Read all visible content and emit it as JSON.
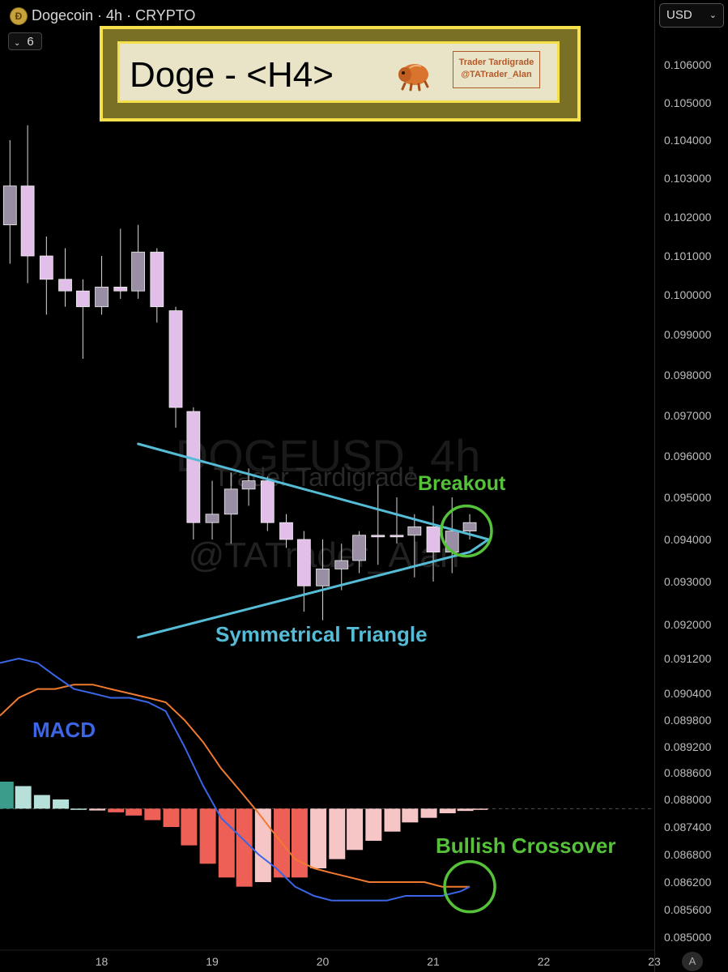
{
  "header": {
    "symbol_title": "Dogecoin · 4h · CRYPTO",
    "collapse_count": "6",
    "currency": "USD",
    "auto_scale": "A"
  },
  "banner": {
    "title": "Doge - <H4>",
    "brand_line1": "Trader Tardigrade",
    "brand_line2": "@TATrader_Alan"
  },
  "watermark": {
    "symbol": "DOGEUSD, 4h",
    "line1": "Trader Tardigrade",
    "line2": "@TATrader_Alan"
  },
  "annotations": {
    "breakout": "Breakout",
    "triangle": "Symmetrical Triangle",
    "macd": "MACD",
    "crossover": "Bullish Crossover"
  },
  "colors": {
    "candle_up": "#e2bfe8",
    "candle_down_gray": "#9a8ea5",
    "triangle_line": "#56bcd6",
    "annotation_green": "#55c23a",
    "macd_line": "#3a66e6",
    "signal_line": "#f07a30",
    "macd_label": "#3c66e6",
    "hist_pos_strong": "#3b9c8b",
    "hist_pos_weak": "#b8e0da",
    "hist_neg_strong": "#ee5f55",
    "hist_neg_weak": "#f6c6c6"
  },
  "chart_data": {
    "type": "candlestick",
    "title": "Doge - <H4>",
    "price_axis": {
      "ticks": [
        0.106,
        0.105,
        0.104,
        0.103,
        0.102,
        0.101,
        0.1,
        0.099,
        0.098,
        0.097,
        0.096,
        0.095,
        0.094,
        0.093,
        0.092,
        0.0912,
        0.0904,
        0.0898,
        0.0892,
        0.0886,
        0.088,
        0.0874,
        0.0868,
        0.0862,
        0.0856,
        0.085
      ],
      "tick_labels": [
        "0.106000",
        "0.105000",
        "0.104000",
        "0.103000",
        "0.102000",
        "0.101000",
        "0.100000",
        "0.099000",
        "0.098000",
        "0.097000",
        "0.096000",
        "0.095000",
        "0.094000",
        "0.093000",
        "0.092000",
        "0.091200",
        "0.090400",
        "0.089800",
        "0.089200",
        "0.088600",
        "0.088000",
        "0.087400",
        "0.086800",
        "0.086200",
        "0.085600",
        "0.085000"
      ]
    },
    "time_axis": {
      "ticks": [
        18,
        19,
        20,
        21,
        22,
        23
      ],
      "tick_labels": [
        "18",
        "19",
        "20",
        "21",
        "22",
        "23"
      ],
      "range": [
        17.08,
        23.0
      ]
    },
    "candles": [
      {
        "t": 17.17,
        "o": 0.1018,
        "h": 0.104,
        "l": 0.1008,
        "c": 0.1028,
        "style": "gray"
      },
      {
        "t": 17.33,
        "o": 0.1028,
        "h": 0.1044,
        "l": 0.1003,
        "c": 0.101,
        "style": "pink"
      },
      {
        "t": 17.5,
        "o": 0.101,
        "h": 0.1015,
        "l": 0.0995,
        "c": 0.1004,
        "style": "pink"
      },
      {
        "t": 17.67,
        "o": 0.1004,
        "h": 0.1012,
        "l": 0.0997,
        "c": 0.1001,
        "style": "pink"
      },
      {
        "t": 17.83,
        "o": 0.1001,
        "h": 0.1004,
        "l": 0.0984,
        "c": 0.0997,
        "style": "pink"
      },
      {
        "t": 18.0,
        "o": 0.0997,
        "h": 0.101,
        "l": 0.0995,
        "c": 0.1002,
        "style": "gray"
      },
      {
        "t": 18.17,
        "o": 0.1001,
        "h": 0.1017,
        "l": 0.0999,
        "c": 0.1002,
        "style": "pink"
      },
      {
        "t": 18.33,
        "o": 0.1001,
        "h": 0.1018,
        "l": 0.0999,
        "c": 0.1011,
        "style": "gray"
      },
      {
        "t": 18.5,
        "o": 0.1011,
        "h": 0.1012,
        "l": 0.0993,
        "c": 0.0997,
        "style": "pink"
      },
      {
        "t": 18.67,
        "o": 0.0996,
        "h": 0.0997,
        "l": 0.0967,
        "c": 0.0972,
        "style": "pink"
      },
      {
        "t": 18.83,
        "o": 0.0971,
        "h": 0.0972,
        "l": 0.094,
        "c": 0.0944,
        "style": "pink"
      },
      {
        "t": 19.0,
        "o": 0.0944,
        "h": 0.0954,
        "l": 0.094,
        "c": 0.0946,
        "style": "gray"
      },
      {
        "t": 19.17,
        "o": 0.0946,
        "h": 0.0956,
        "l": 0.0939,
        "c": 0.0952,
        "style": "gray"
      },
      {
        "t": 19.33,
        "o": 0.0952,
        "h": 0.0957,
        "l": 0.0948,
        "c": 0.0954,
        "style": "gray"
      },
      {
        "t": 19.5,
        "o": 0.0954,
        "h": 0.0955,
        "l": 0.0942,
        "c": 0.0944,
        "style": "pink"
      },
      {
        "t": 19.67,
        "o": 0.0944,
        "h": 0.0946,
        "l": 0.0938,
        "c": 0.094,
        "style": "pink"
      },
      {
        "t": 19.83,
        "o": 0.094,
        "h": 0.0942,
        "l": 0.0923,
        "c": 0.0929,
        "style": "pink"
      },
      {
        "t": 20.0,
        "o": 0.0929,
        "h": 0.094,
        "l": 0.0921,
        "c": 0.0933,
        "style": "gray"
      },
      {
        "t": 20.17,
        "o": 0.0933,
        "h": 0.0939,
        "l": 0.0928,
        "c": 0.0935,
        "style": "gray"
      },
      {
        "t": 20.33,
        "o": 0.0935,
        "h": 0.0942,
        "l": 0.0932,
        "c": 0.0941,
        "style": "gray"
      },
      {
        "t": 20.5,
        "o": 0.0941,
        "h": 0.0953,
        "l": 0.0934,
        "c": 0.0941,
        "style": "pink"
      },
      {
        "t": 20.67,
        "o": 0.0941,
        "h": 0.095,
        "l": 0.0939,
        "c": 0.0941,
        "style": "pink"
      },
      {
        "t": 20.83,
        "o": 0.0941,
        "h": 0.0946,
        "l": 0.0931,
        "c": 0.0943,
        "style": "gray"
      },
      {
        "t": 21.0,
        "o": 0.0943,
        "h": 0.0948,
        "l": 0.093,
        "c": 0.0937,
        "style": "pink"
      },
      {
        "t": 21.17,
        "o": 0.0937,
        "h": 0.095,
        "l": 0.0932,
        "c": 0.0942,
        "style": "gray"
      },
      {
        "t": 21.33,
        "o": 0.0942,
        "h": 0.0946,
        "l": 0.094,
        "c": 0.0944,
        "style": "gray"
      }
    ],
    "triangle": {
      "upper": [
        {
          "t": 18.33,
          "p": 0.0963
        },
        {
          "t": 21.5,
          "p": 0.094
        }
      ],
      "lower": [
        {
          "t": 18.33,
          "p": 0.0917
        },
        {
          "t": 21.33,
          "p": 0.0937
        }
      ]
    },
    "breakout_circle": {
      "t": 21.3,
      "p": 0.0942
    },
    "macd": {
      "zero_level": 0.0878,
      "t": [
        17.08,
        17.25,
        17.42,
        17.58,
        17.75,
        17.92,
        18.08,
        18.25,
        18.42,
        18.58,
        18.75,
        18.92,
        19.08,
        19.25,
        19.42,
        19.58,
        19.75,
        19.92,
        20.08,
        20.25,
        20.42,
        20.58,
        20.75,
        20.92,
        21.08,
        21.25,
        21.33
      ],
      "macd_line": [
        0.0911,
        0.0912,
        0.0911,
        0.0908,
        0.0905,
        0.0904,
        0.0903,
        0.0903,
        0.0902,
        0.09,
        0.0892,
        0.0883,
        0.0876,
        0.0872,
        0.0868,
        0.0865,
        0.0861,
        0.0859,
        0.0858,
        0.0858,
        0.0858,
        0.0858,
        0.0859,
        0.0859,
        0.0859,
        0.086,
        0.0861
      ],
      "signal_line": [
        0.0899,
        0.0903,
        0.0905,
        0.0905,
        0.0906,
        0.0906,
        0.0905,
        0.0904,
        0.0903,
        0.0902,
        0.0898,
        0.0893,
        0.0887,
        0.0882,
        0.0877,
        0.0872,
        0.0867,
        0.0865,
        0.0864,
        0.0863,
        0.0862,
        0.0862,
        0.0862,
        0.0862,
        0.0861,
        0.0861,
        0.0861
      ],
      "histogram": [
        {
          "t": 17.13,
          "v": 0.0884,
          "tone": "pos_strong"
        },
        {
          "t": 17.29,
          "v": 0.0883,
          "tone": "pos_weak"
        },
        {
          "t": 17.46,
          "v": 0.0881,
          "tone": "pos_weak"
        },
        {
          "t": 17.63,
          "v": 0.088,
          "tone": "pos_weak"
        },
        {
          "t": 17.79,
          "v": 0.0878,
          "tone": "pos_weak"
        },
        {
          "t": 17.96,
          "v": 0.08776,
          "tone": "neg_weak"
        },
        {
          "t": 18.13,
          "v": 0.08772,
          "tone": "neg_strong"
        },
        {
          "t": 18.29,
          "v": 0.08765,
          "tone": "neg_strong"
        },
        {
          "t": 18.46,
          "v": 0.08755,
          "tone": "neg_strong"
        },
        {
          "t": 18.63,
          "v": 0.0874,
          "tone": "neg_strong"
        },
        {
          "t": 18.79,
          "v": 0.087,
          "tone": "neg_strong"
        },
        {
          "t": 18.96,
          "v": 0.0866,
          "tone": "neg_strong"
        },
        {
          "t": 19.13,
          "v": 0.0863,
          "tone": "neg_strong"
        },
        {
          "t": 19.29,
          "v": 0.0861,
          "tone": "neg_strong"
        },
        {
          "t": 19.46,
          "v": 0.0862,
          "tone": "neg_weak"
        },
        {
          "t": 19.63,
          "v": 0.0863,
          "tone": "neg_strong"
        },
        {
          "t": 19.79,
          "v": 0.0863,
          "tone": "neg_strong"
        },
        {
          "t": 19.96,
          "v": 0.0865,
          "tone": "neg_weak"
        },
        {
          "t": 20.13,
          "v": 0.0867,
          "tone": "neg_weak"
        },
        {
          "t": 20.29,
          "v": 0.0869,
          "tone": "neg_weak"
        },
        {
          "t": 20.46,
          "v": 0.0871,
          "tone": "neg_weak"
        },
        {
          "t": 20.63,
          "v": 0.0873,
          "tone": "neg_weak"
        },
        {
          "t": 20.79,
          "v": 0.0875,
          "tone": "neg_weak"
        },
        {
          "t": 20.96,
          "v": 0.0876,
          "tone": "neg_weak"
        },
        {
          "t": 21.13,
          "v": 0.0877,
          "tone": "neg_weak"
        },
        {
          "t": 21.29,
          "v": 0.08775,
          "tone": "neg_weak"
        },
        {
          "t": 21.42,
          "v": 0.08778,
          "tone": "neg_weak"
        }
      ],
      "crossover_circle": {
        "t": 21.33,
        "p": 0.0861
      }
    }
  }
}
